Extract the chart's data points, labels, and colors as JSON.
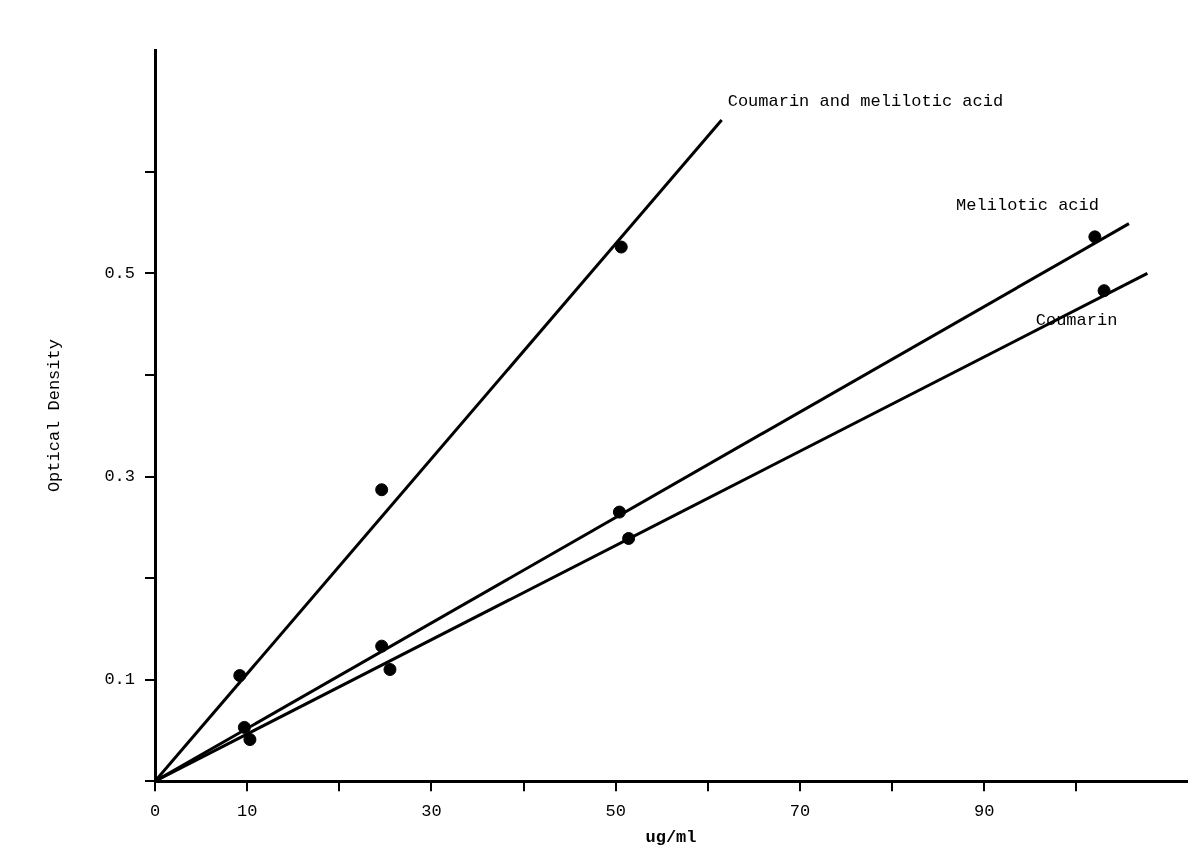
{
  "chart_data": {
    "type": "scatter",
    "xlabel": "ug/ml",
    "ylabel": "Optical Density",
    "xlim": [
      0,
      112
    ],
    "ylim": [
      0,
      0.72
    ],
    "xticks": [
      0,
      10,
      {
        "value": 20,
        "label": null
      },
      30,
      {
        "value": 40,
        "label": null
      },
      50,
      {
        "value": 60,
        "label": null
      },
      70,
      {
        "value": 80,
        "label": null
      },
      90,
      {
        "value": 100,
        "label": null
      }
    ],
    "yticks": [
      {
        "value": 0,
        "label": null
      },
      0.1,
      {
        "value": 0.2,
        "label": null
      },
      0.3,
      {
        "value": 0.4,
        "label": null
      },
      0.5,
      {
        "value": 0.6,
        "label": null
      }
    ],
    "grid": false,
    "legend": false,
    "marker": "circle",
    "series": [
      {
        "color": "#000000",
        "x": [
          9.2,
          24.6,
          50.6
        ],
        "values": [
          0.104,
          0.287,
          0.526
        ]
      },
      {
        "color": "#000000",
        "x": [
          9.7,
          24.6,
          50.4,
          102
        ],
        "values": [
          0.053,
          0.133,
          0.265,
          0.536
        ]
      },
      {
        "color": "#000000",
        "x": [
          10.3,
          25.5,
          51.4,
          103
        ],
        "values": [
          0.041,
          0.11,
          0.239,
          0.483
        ]
      },
      {
        "type": "line",
        "name": "Coumarin and melilotic acid",
        "color": "#000000",
        "marker": "none",
        "x": [
          0,
          61.5
        ],
        "values": [
          0,
          0.651
        ]
      },
      {
        "type": "line",
        "name": "Melilotic acid",
        "color": "#000000",
        "marker": "none",
        "x": [
          0,
          105.7
        ],
        "values": [
          0,
          0.549
        ]
      },
      {
        "type": "line",
        "name": "Coumarin",
        "color": "#000000",
        "marker": "none",
        "x": [
          0,
          107.7
        ],
        "values": [
          0,
          0.5
        ]
      }
    ]
  }
}
